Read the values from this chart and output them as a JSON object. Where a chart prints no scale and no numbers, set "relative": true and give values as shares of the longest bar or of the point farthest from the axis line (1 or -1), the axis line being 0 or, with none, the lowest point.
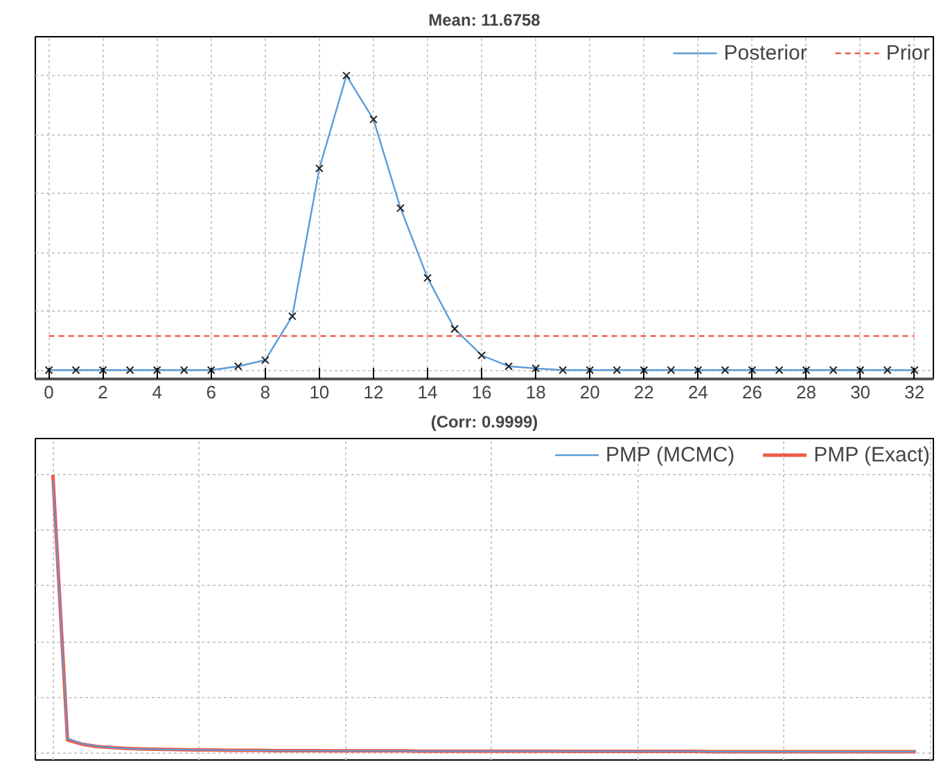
{
  "chart_data": [
    {
      "type": "line",
      "annotations": [
        "Mean: 11.6758"
      ],
      "x": [
        0,
        1,
        2,
        3,
        4,
        5,
        6,
        7,
        8,
        9,
        10,
        11,
        12,
        13,
        14,
        15,
        16,
        17,
        18,
        19,
        20,
        21,
        22,
        23,
        24,
        25,
        26,
        27,
        28,
        29,
        30,
        31,
        32
      ],
      "relative": true,
      "xlim": [
        -0.5,
        32.7
      ],
      "xticks": [
        0,
        2,
        4,
        6,
        8,
        10,
        12,
        14,
        16,
        18,
        20,
        22,
        24,
        26,
        28,
        30,
        32
      ],
      "grid": true,
      "legend": "top right",
      "series": [
        {
          "name": "Posterior",
          "color": "#5b9bd5",
          "marker": "cross",
          "line_style": "solid",
          "values": [
            0,
            0,
            0,
            0,
            0,
            0,
            0,
            0.013,
            0.034,
            0.183,
            0.685,
            1.0,
            0.851,
            0.55,
            0.313,
            0.14,
            0.05,
            0.013,
            0.006,
            0,
            0,
            0,
            0,
            0,
            0,
            0,
            0,
            0,
            0,
            0,
            0,
            0,
            0
          ]
        },
        {
          "name": "Prior",
          "color": "#f05a4a",
          "marker": "none",
          "line_style": "dashed",
          "values": [
            0.116,
            0.116,
            0.116,
            0.116,
            0.116,
            0.116,
            0.116,
            0.116,
            0.116,
            0.116,
            0.116,
            0.116,
            0.116,
            0.116,
            0.116,
            0.116,
            0.116,
            0.116,
            0.116,
            0.116,
            0.116,
            0.116,
            0.116,
            0.116,
            0.116,
            0.116,
            0.116,
            0.116,
            0.116,
            0.116,
            0.116,
            0.116,
            0.116
          ]
        }
      ]
    },
    {
      "type": "line",
      "annotations": [
        "(Corr: 0.9999)"
      ],
      "relative": true,
      "grid": true,
      "legend": "top right",
      "tick_labels": false,
      "categories": [
        null,
        null,
        null,
        null,
        null,
        null,
        null,
        null,
        null,
        null,
        null,
        null,
        null,
        null,
        null,
        null,
        null,
        null,
        null,
        null,
        null,
        null,
        null,
        null,
        null,
        null,
        null,
        null,
        null,
        null,
        null,
        null,
        null,
        null,
        null,
        null,
        null,
        null,
        null,
        null,
        null,
        null,
        null,
        null,
        null,
        null,
        null,
        null,
        null,
        null,
        null,
        null,
        null,
        null,
        null,
        null,
        null,
        null,
        null,
        null
      ],
      "series": [
        {
          "name": "PMP (MCMC)",
          "color": "#5b9bd5",
          "line_style": "solid",
          "values": [
            0.98,
            0.05,
            0.032,
            0.023,
            0.018,
            0.015,
            0.013,
            0.012,
            0.011,
            0.01,
            0.009,
            0.009,
            0.008,
            0.008,
            0.008,
            0.007,
            0.007,
            0.007,
            0.007,
            0.006,
            0.006,
            0.006,
            0.006,
            0.006,
            0.006,
            0.005,
            0.005,
            0.005,
            0.005,
            0.005,
            0.005,
            0.005,
            0.005,
            0.005,
            0.005,
            0.004,
            0.004,
            0.004,
            0.004,
            0.004,
            0.004,
            0.004,
            0.004,
            0.004,
            0.004,
            0.003,
            0.003,
            0.003,
            0.003,
            0.003,
            0.003,
            0.003,
            0.003,
            0.003,
            0.003,
            0.003,
            0.003,
            0.003,
            0.003,
            0.003
          ]
        },
        {
          "name": "PMP (Exact)",
          "color": "#f05a4a",
          "line_style": "solid",
          "values": [
            1.0,
            0.045,
            0.03,
            0.022,
            0.018,
            0.015,
            0.013,
            0.012,
            0.011,
            0.01,
            0.009,
            0.009,
            0.008,
            0.008,
            0.008,
            0.007,
            0.007,
            0.007,
            0.007,
            0.006,
            0.006,
            0.006,
            0.006,
            0.006,
            0.006,
            0.005,
            0.005,
            0.005,
            0.005,
            0.005,
            0.005,
            0.005,
            0.005,
            0.005,
            0.005,
            0.004,
            0.004,
            0.004,
            0.004,
            0.004,
            0.004,
            0.004,
            0.004,
            0.004,
            0.004,
            0.003,
            0.003,
            0.003,
            0.003,
            0.003,
            0.003,
            0.003,
            0.003,
            0.003,
            0.003,
            0.003,
            0.003,
            0.003,
            0.003,
            0.003
          ]
        }
      ]
    }
  ]
}
